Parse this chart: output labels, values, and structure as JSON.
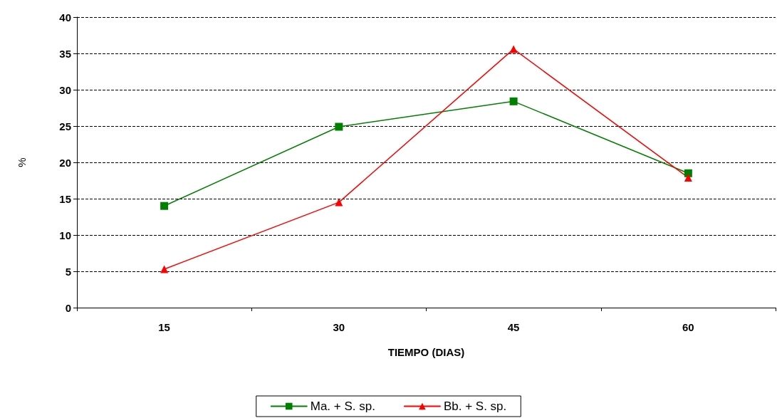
{
  "chart_data": {
    "type": "line",
    "xlabel": "TIEMPO (DIAS)",
    "ylabel": "%",
    "categories": [
      "15",
      "30",
      "45",
      "60"
    ],
    "series": [
      {
        "name": "Ma. + S. sp.",
        "color": "#008000",
        "marker": "square",
        "values": [
          14.0,
          24.9,
          28.4,
          18.5
        ]
      },
      {
        "name": "Bb. + S. sp.",
        "color": "#ff0000",
        "marker": "triangle",
        "values": [
          5.3,
          14.5,
          35.6,
          17.9
        ]
      }
    ],
    "ylim": [
      0,
      40
    ],
    "yticks": [
      0,
      5,
      10,
      15,
      20,
      25,
      30,
      35,
      40
    ],
    "grid": "y",
    "legend": "bottom",
    "line_style": "solid"
  }
}
